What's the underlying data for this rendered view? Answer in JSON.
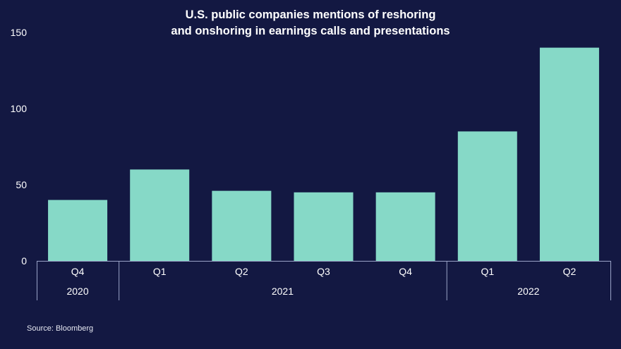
{
  "chart_data": {
    "type": "bar",
    "title_lines": [
      "U.S. public companies mentions of reshoring",
      "and onshoring in earnings calls and presentations"
    ],
    "categories": [
      "Q4",
      "Q1",
      "Q2",
      "Q3",
      "Q4",
      "Q1",
      "Q2"
    ],
    "values": [
      40,
      60,
      46,
      45,
      45,
      85,
      140
    ],
    "groups": [
      {
        "label": "2020",
        "count": 1
      },
      {
        "label": "2021",
        "count": 4
      },
      {
        "label": "2022",
        "count": 2
      }
    ],
    "y_ticks": [
      0,
      50,
      100,
      150
    ],
    "ylim": [
      0,
      150
    ],
    "grid": false,
    "bar_color": "#86d9c7",
    "background_color": "#131842",
    "axis_color": "#9aa3c7"
  },
  "source": "Source: Bloomberg"
}
